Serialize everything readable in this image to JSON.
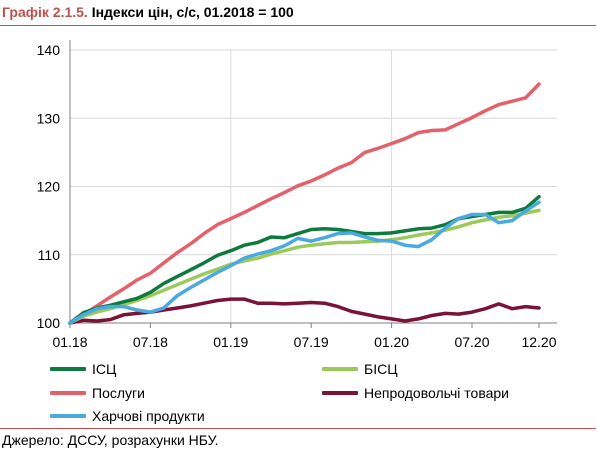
{
  "header": {
    "title_lead": "Графік 2.1.5.",
    "title_rest": " Індекси цін, с/с, 01.2018 = 100"
  },
  "footer": {
    "source": "Джерело: ДССУ, розрахунки НБУ."
  },
  "colors": {
    "accent": "#c0504d",
    "grid": "#d9d9d9",
    "axis": "#7f7f7f"
  },
  "chart_data": {
    "type": "line",
    "title": "Індекси цін, с/с, 01.2018 = 100",
    "xlabel": "",
    "ylabel": "",
    "ylim": [
      100,
      140
    ],
    "yticks": [
      100,
      110,
      120,
      130,
      140
    ],
    "x_tick_labels": [
      {
        "label": "01.18",
        "x": "2018-01"
      },
      {
        "label": "07.18",
        "x": "2018-07"
      },
      {
        "label": "01.19",
        "x": "2019-01"
      },
      {
        "label": "07.19",
        "x": "2019-07"
      },
      {
        "label": "01.20",
        "x": "2020-01"
      },
      {
        "label": "07.20",
        "x": "2020-07"
      },
      {
        "label": "12.20",
        "x": "2020-12"
      }
    ],
    "x": [
      "2018-01",
      "2018-02",
      "2018-03",
      "2018-04",
      "2018-05",
      "2018-06",
      "2018-07",
      "2018-08",
      "2018-09",
      "2018-10",
      "2018-11",
      "2018-12",
      "2019-01",
      "2019-02",
      "2019-03",
      "2019-04",
      "2019-05",
      "2019-06",
      "2019-07",
      "2019-08",
      "2019-09",
      "2019-10",
      "2019-11",
      "2019-12",
      "2020-01",
      "2020-02",
      "2020-03",
      "2020-04",
      "2020-05",
      "2020-06",
      "2020-07",
      "2020-08",
      "2020-09",
      "2020-10",
      "2020-11",
      "2020-12"
    ],
    "grid": true,
    "legend_position": "bottom",
    "series": [
      {
        "name": "ІСЦ",
        "color": "#0f7a3e",
        "values": [
          100,
          101.5,
          102.2,
          102.6,
          103.1,
          103.6,
          104.5,
          105.8,
          106.8,
          107.8,
          108.8,
          109.9,
          110.6,
          111.4,
          111.8,
          112.6,
          112.5,
          113.1,
          113.7,
          113.8,
          113.7,
          113.4,
          113.1,
          113.1,
          113.2,
          113.5,
          113.8,
          113.9,
          114.4,
          115.3,
          115.6,
          115.9,
          116.2,
          116.2,
          116.8,
          118.5
        ]
      },
      {
        "name": "БІСЦ",
        "color": "#9bca5b",
        "values": [
          100,
          101.0,
          101.6,
          102.1,
          102.7,
          103.3,
          104.0,
          104.8,
          105.6,
          106.4,
          107.2,
          107.9,
          108.6,
          109.1,
          109.5,
          110.1,
          110.6,
          111.1,
          111.4,
          111.6,
          111.8,
          111.8,
          111.9,
          112.0,
          112.2,
          112.5,
          112.9,
          113.2,
          113.6,
          114.1,
          114.7,
          115.1,
          115.5,
          115.7,
          116.1,
          116.5
        ]
      },
      {
        "name": "Послуги",
        "color": "#e4606b",
        "values": [
          100,
          101.2,
          102.5,
          103.8,
          105.0,
          106.3,
          107.3,
          108.8,
          110.3,
          111.6,
          113.1,
          114.4,
          115.3,
          116.2,
          117.2,
          118.2,
          119.1,
          120.1,
          120.8,
          121.7,
          122.7,
          123.5,
          125.0,
          125.6,
          126.3,
          127.0,
          127.9,
          128.2,
          128.3,
          129.2,
          130.1,
          131.1,
          132.0,
          132.5,
          133.0,
          135.0
        ]
      },
      {
        "name": "Непродовольчі товари",
        "color": "#7b1237",
        "values": [
          100,
          100.4,
          100.3,
          100.5,
          101.2,
          101.4,
          101.6,
          101.9,
          102.2,
          102.5,
          102.9,
          103.3,
          103.5,
          103.5,
          102.9,
          102.9,
          102.8,
          102.9,
          103.0,
          102.9,
          102.4,
          101.7,
          101.3,
          100.9,
          100.6,
          100.3,
          100.6,
          101.1,
          101.4,
          101.3,
          101.6,
          102.1,
          102.8,
          102.1,
          102.4,
          102.2
        ]
      },
      {
        "name": "Харчові продукти",
        "color": "#49a9e0",
        "values": [
          100,
          101.2,
          102.1,
          102.4,
          102.4,
          101.9,
          101.6,
          102.2,
          104.0,
          105.2,
          106.3,
          107.4,
          108.4,
          109.5,
          110.1,
          110.6,
          111.3,
          112.4,
          112.0,
          112.5,
          113.1,
          113.2,
          112.6,
          112.1,
          112.0,
          111.4,
          111.2,
          112.2,
          113.9,
          115.3,
          115.9,
          115.9,
          114.7,
          115.0,
          116.4,
          117.7
        ]
      }
    ]
  }
}
